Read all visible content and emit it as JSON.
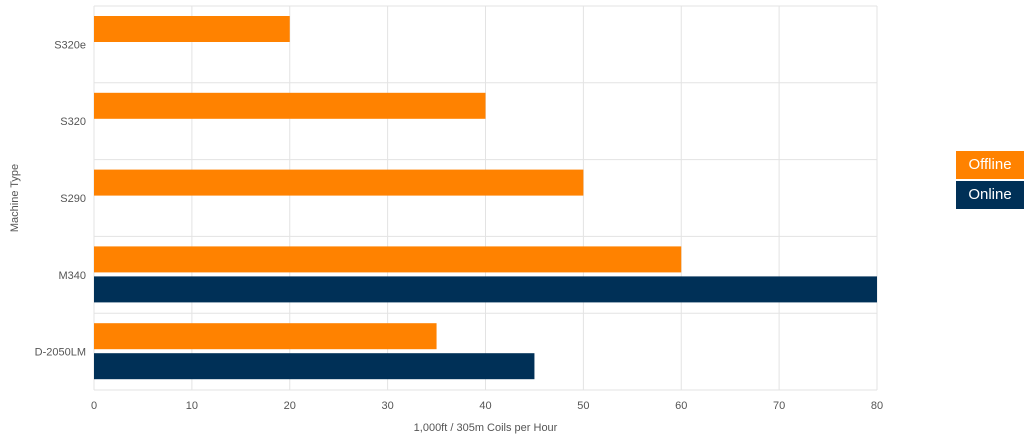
{
  "chart_data": {
    "type": "bar",
    "orientation": "horizontal",
    "categories": [
      "S320e",
      "S320",
      "S290",
      "M340",
      "D-2050LM"
    ],
    "series": [
      {
        "name": "Offline",
        "values": [
          20,
          40,
          50,
          60,
          35
        ],
        "color": "#ff8200"
      },
      {
        "name": "Online",
        "values": [
          null,
          null,
          null,
          80,
          45
        ],
        "color": "#003057"
      }
    ],
    "title": "",
    "xlabel": "1,000ft / 305m Coils per Hour",
    "ylabel": "Machine Type",
    "xlim": [
      0,
      80
    ],
    "xticks": [
      "0",
      "10",
      "20",
      "30",
      "40",
      "50",
      "60",
      "70",
      "80"
    ],
    "grid": true,
    "legend_position": "right"
  }
}
